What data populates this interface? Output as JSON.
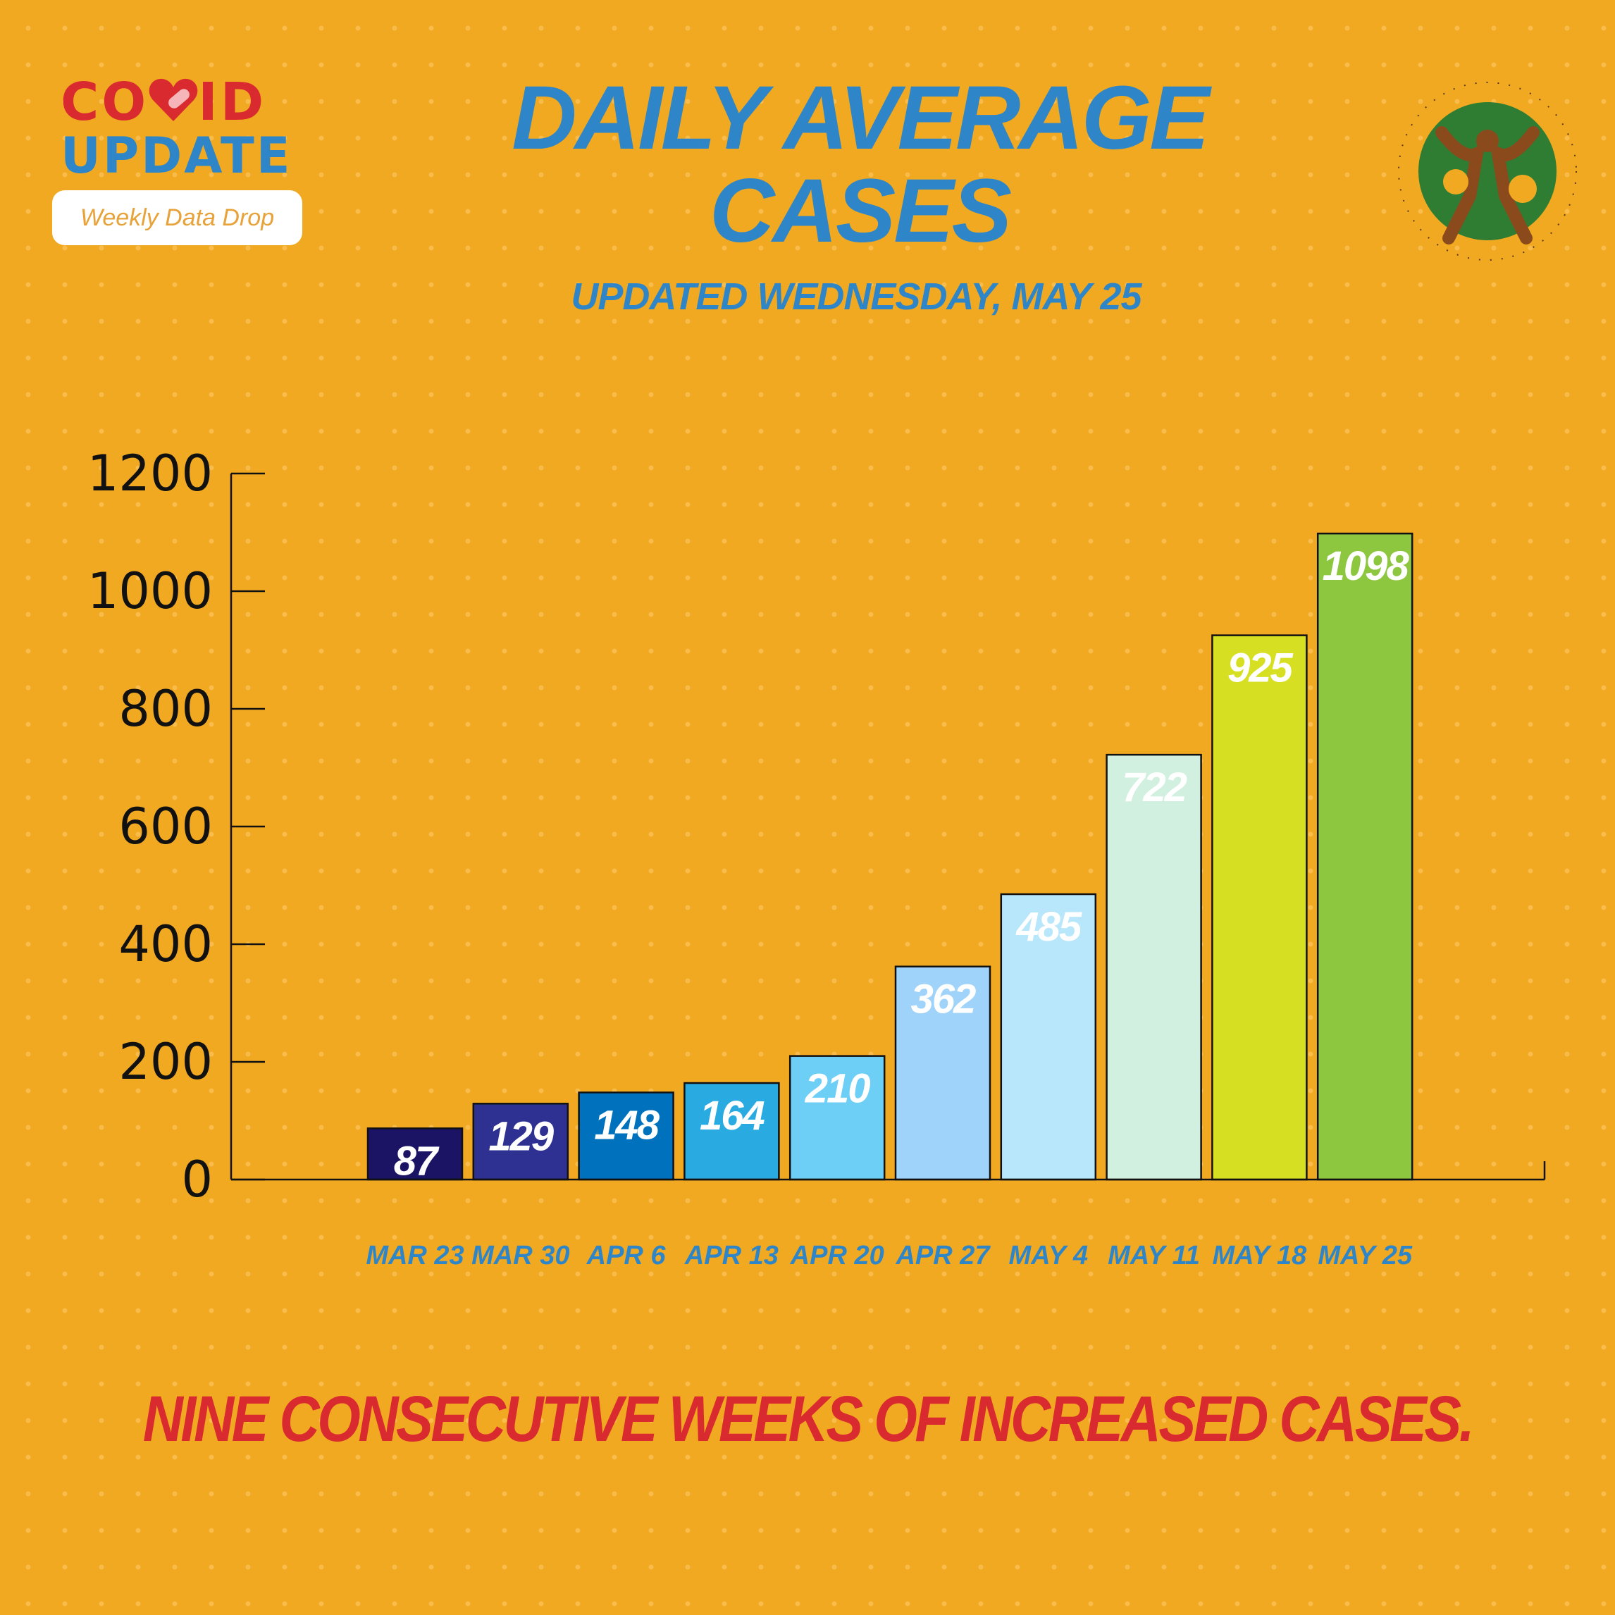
{
  "branding": {
    "covid_word": "CO",
    "covid_word_end": "ID",
    "update_word": "UPDATE",
    "tagline": "Weekly Data Drop",
    "seal_icon": "hawaii-doh-seal-icon",
    "colors": {
      "red": "#D92B2F",
      "blue": "#2E86C8",
      "background": "#F2A922",
      "seal_green": "#2E7D32"
    }
  },
  "header": {
    "title_line1": "DAILY AVERAGE",
    "title_line2": "CASES",
    "subtitle": "UPDATED WEDNESDAY, MAY 25"
  },
  "chart_data": {
    "type": "bar",
    "title": "DAILY AVERAGE CASES",
    "xlabel": "",
    "ylabel": "",
    "ylim": [
      0,
      1200
    ],
    "yticks": [
      0,
      200,
      400,
      600,
      800,
      1000,
      1200
    ],
    "grid": false,
    "categories": [
      "MAR 23",
      "MAR 30",
      "APR 6",
      "APR 13",
      "APR 20",
      "APR 27",
      "MAY 4",
      "MAY 11",
      "MAY 18",
      "MAY 25"
    ],
    "values": [
      87,
      129,
      148,
      164,
      210,
      362,
      485,
      722,
      925,
      1098
    ],
    "bar_colors": [
      "#1B1464",
      "#2E3192",
      "#0071BC",
      "#29ABE2",
      "#6DCFF6",
      "#9FD3FA",
      "#B8E6FB",
      "#D2F0E0",
      "#D7DF23",
      "#8DC63F"
    ]
  },
  "footer": {
    "text": "NINE CONSECUTIVE WEEKS OF INCREASED CASES."
  }
}
